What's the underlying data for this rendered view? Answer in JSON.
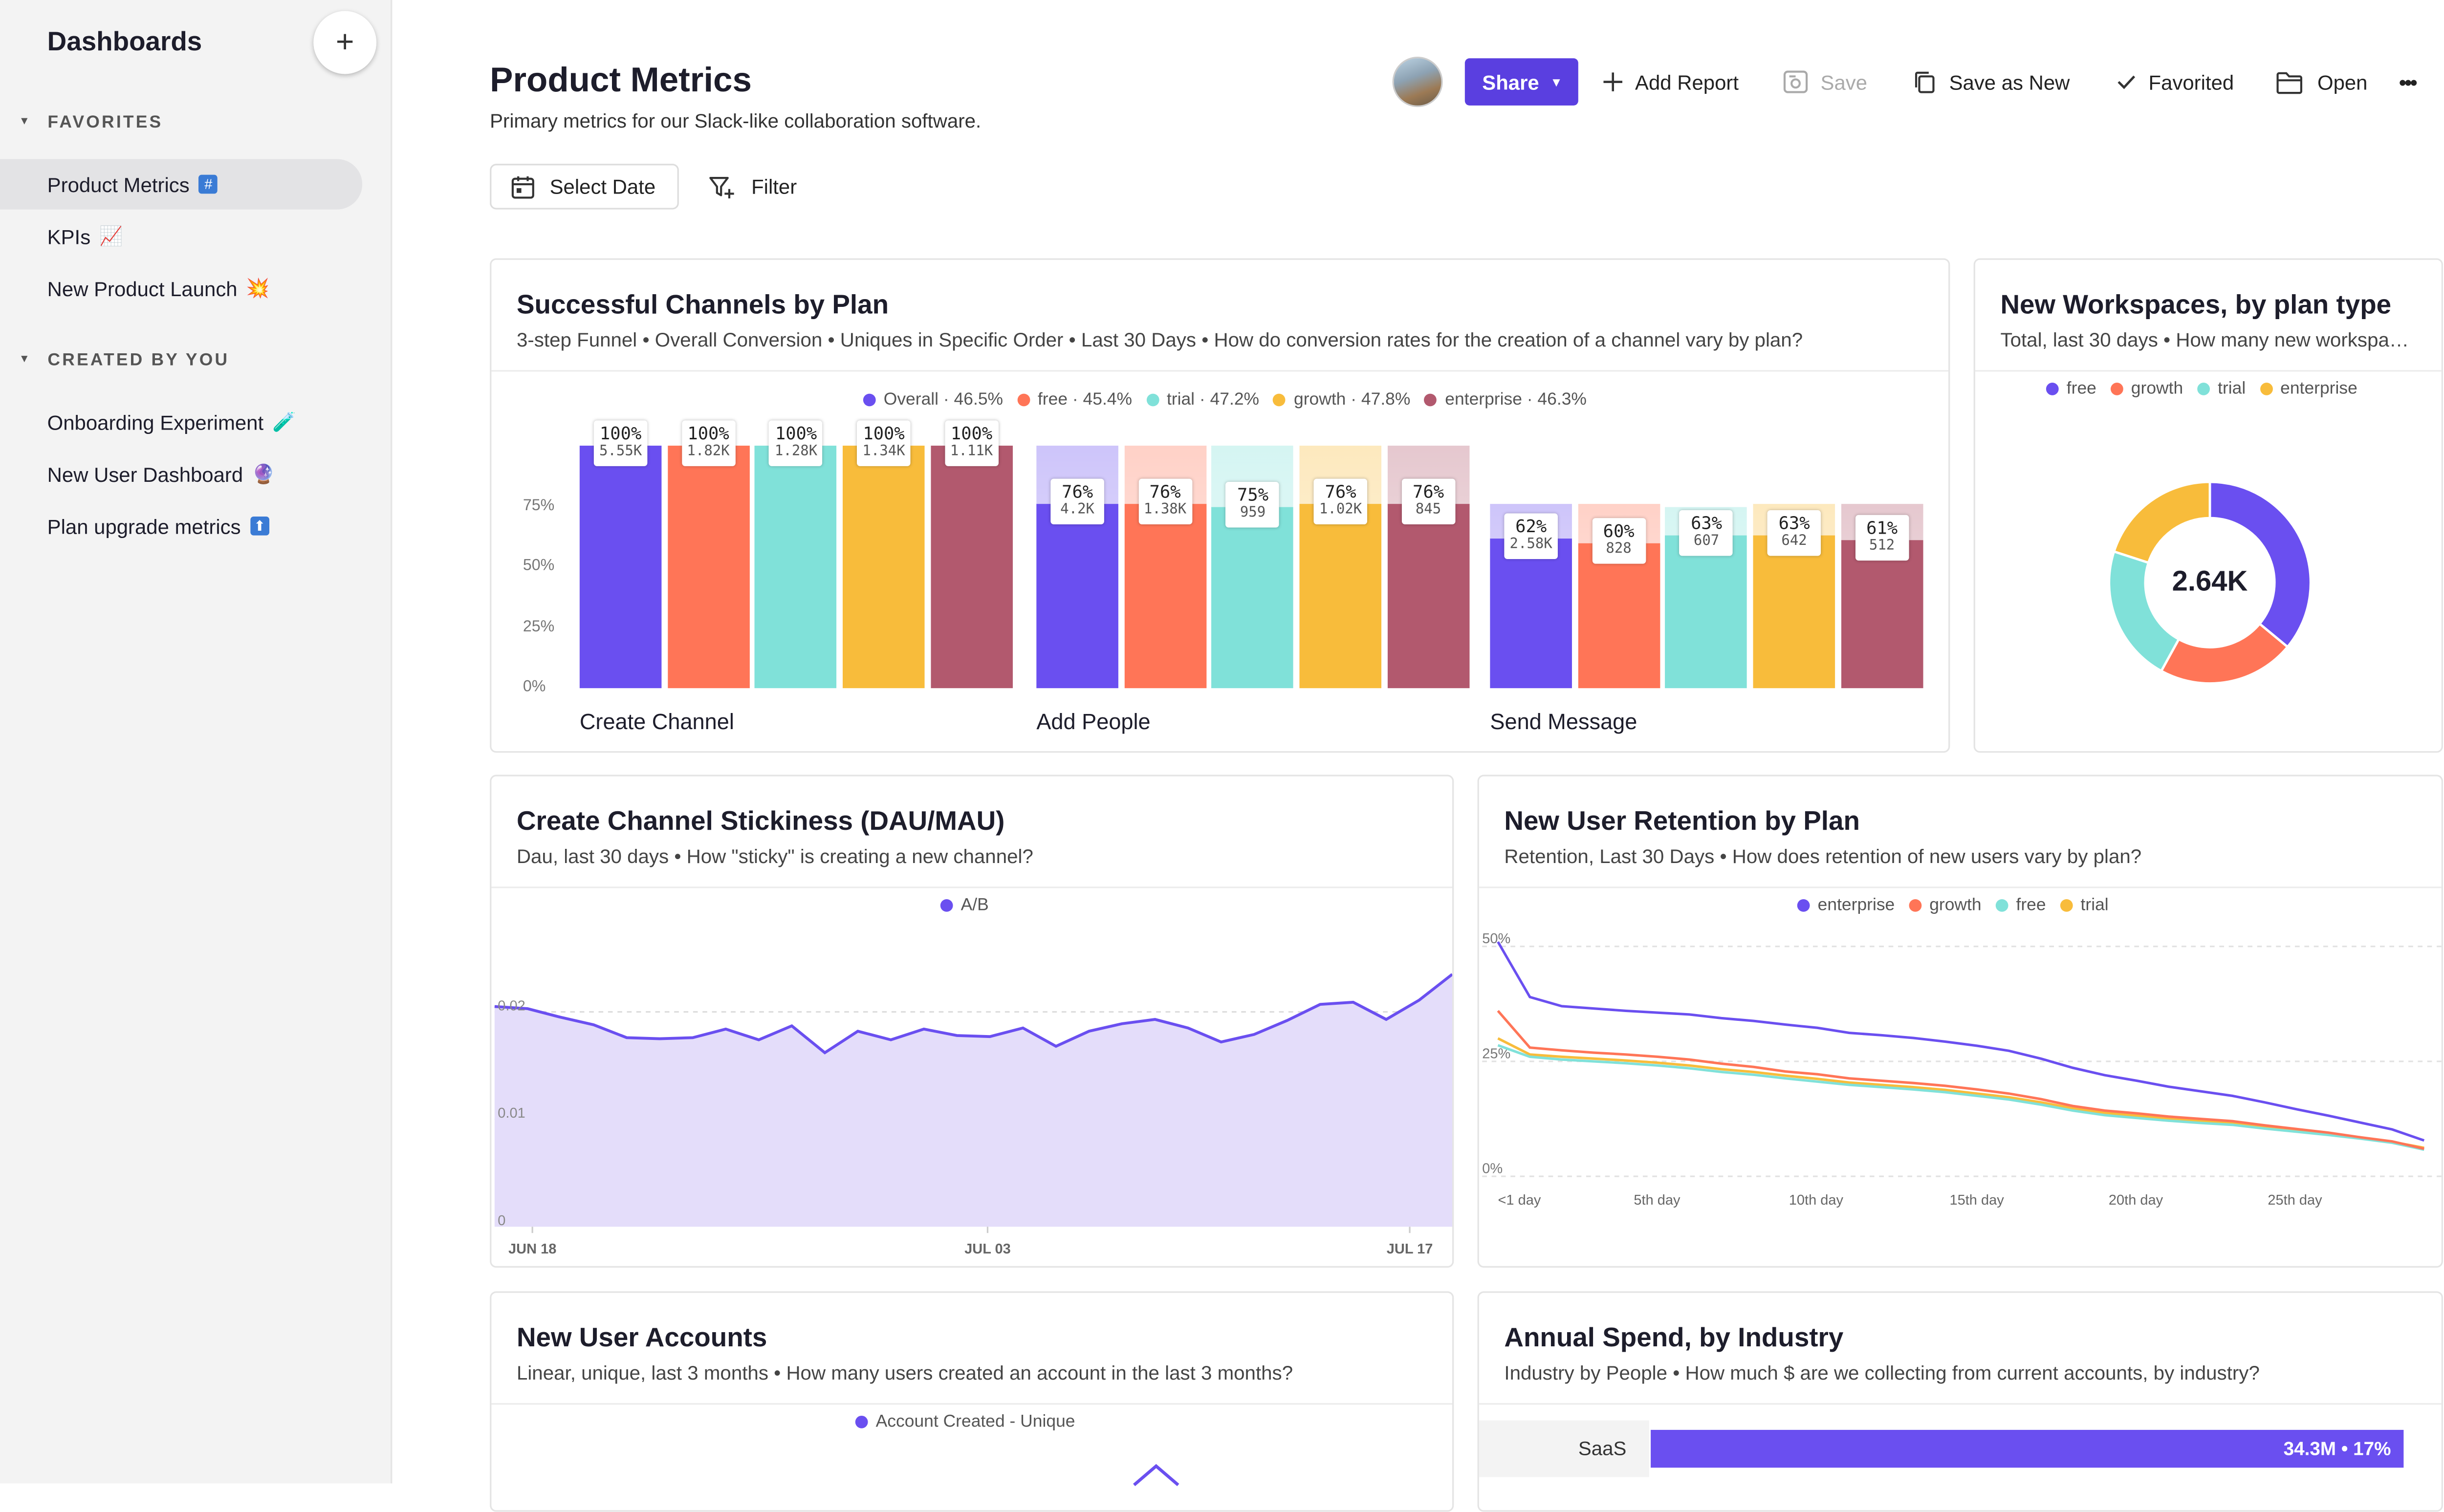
{
  "sidebar": {
    "title": "Dashboards",
    "add_label": "+",
    "favorites_label": "FAVORITES",
    "created_label": "CREATED BY YOU",
    "favorites": [
      {
        "label": "Product Metrics",
        "icon": "hash-emoji-icon",
        "emoji": "#",
        "active": true
      },
      {
        "label": "KPIs",
        "icon": "chart-increasing-emoji-icon",
        "emoji": "📈"
      },
      {
        "label": "New Product Launch",
        "icon": "collision-emoji-icon",
        "emoji": "💥"
      }
    ],
    "created": [
      {
        "label": "Onboarding Experiment",
        "icon": "test-tube-emoji-icon",
        "emoji": "🧪"
      },
      {
        "label": "New User Dashboard",
        "icon": "crystal-ball-emoji-icon",
        "emoji": "🔮"
      },
      {
        "label": "Plan upgrade metrics",
        "icon": "up-arrow-emoji-icon",
        "emoji": "⬆"
      }
    ]
  },
  "header": {
    "title": "Product Metrics",
    "description": "Primary metrics for our Slack-like collaboration software.",
    "select_date": "Select Date",
    "filter": "Filter"
  },
  "toolbar": {
    "share": "Share",
    "add_report": "Add Report",
    "save": "Save",
    "save_as_new": "Save as New",
    "favorited": "Favorited",
    "open": "Open",
    "more": "•••"
  },
  "colors": {
    "purple": "#6a4ff0",
    "orange": "#ff7557",
    "teal": "#80e1d9",
    "yellow": "#f8bc3b",
    "maroon": "#b2596e",
    "brand": "#5a3fe0"
  },
  "funnel": {
    "title": "Successful Channels by Plan",
    "subtitle": "3-step Funnel • Overall Conversion • Uniques in Specific Order • Last 30 Days • How do conversion rates for the creation of a channel vary by plan?",
    "legend": [
      {
        "label": "Overall · 46.5%",
        "color": "#6a4ff0"
      },
      {
        "label": "free · 45.4%",
        "color": "#ff7557"
      },
      {
        "label": "trial · 47.2%",
        "color": "#80e1d9"
      },
      {
        "label": "growth · 47.8%",
        "color": "#f8bc3b"
      },
      {
        "label": "enterprise · 46.3%",
        "color": "#b2596e"
      }
    ],
    "y_ticks": [
      "75%",
      "50%",
      "25%",
      "0%"
    ]
  },
  "workspaces": {
    "title": "New Workspaces, by plan type",
    "subtitle": "Total, last 30 days • How many new workspac...",
    "legend": [
      {
        "label": "free",
        "color": "#6a4ff0"
      },
      {
        "label": "growth",
        "color": "#ff7557"
      },
      {
        "label": "trial",
        "color": "#80e1d9"
      },
      {
        "label": "enterprise",
        "color": "#f8bc3b"
      }
    ],
    "total": "2.64K"
  },
  "stickiness": {
    "title": "Create Channel Stickiness (DAU/MAU)",
    "subtitle": "Dau, last 30 days • How \"sticky\" is creating a new channel?",
    "legend": [
      {
        "label": "A/B",
        "color": "#6a4ff0"
      }
    ],
    "y_ticks": [
      "0.02",
      "0.01",
      "0"
    ],
    "x_ticks": [
      "JUN 18",
      "JUL 03",
      "JUL 17"
    ]
  },
  "retention": {
    "title": "New User Retention by Plan",
    "subtitle": "Retention, Last 30 Days • How does retention of new users vary by plan?",
    "legend": [
      {
        "label": "enterprise",
        "color": "#6a4ff0"
      },
      {
        "label": "growth",
        "color": "#ff7557"
      },
      {
        "label": "free",
        "color": "#80e1d9"
      },
      {
        "label": "trial",
        "color": "#f8bc3b"
      }
    ],
    "y_ticks": [
      "50%",
      "25%",
      "0%"
    ],
    "x_ticks": [
      "<1 day",
      "5th day",
      "10th day",
      "15th day",
      "20th day",
      "25th day"
    ]
  },
  "accounts": {
    "title": "New User Accounts",
    "subtitle": "Linear, unique, last 3 months • How many users created an account in the last 3 months?",
    "legend": [
      {
        "label": "Account Created - Unique",
        "color": "#6a4ff0"
      }
    ]
  },
  "spend": {
    "title": "Annual Spend, by Industry",
    "subtitle": "Industry by People • How much $ are we collecting from current accounts, by industry?",
    "row_label": "SaaS",
    "row_value": "34.3M • 17%"
  },
  "chart_data": [
    {
      "type": "bar",
      "title": "Successful Channels by Plan",
      "categories": [
        "Create Channel",
        "Add People",
        "Send Message"
      ],
      "series": [
        {
          "name": "Overall",
          "values": [
            100,
            76,
            62
          ],
          "counts": [
            "5.55K",
            "4.2K",
            "2.58K"
          ]
        },
        {
          "name": "free",
          "values": [
            100,
            76,
            60
          ],
          "counts": [
            "1.82K",
            "1.38K",
            "828"
          ]
        },
        {
          "name": "trial",
          "values": [
            100,
            75,
            63
          ],
          "counts": [
            "1.28K",
            "959",
            "607"
          ]
        },
        {
          "name": "growth",
          "values": [
            100,
            76,
            63
          ],
          "counts": [
            "1.34K",
            "1.02K",
            "642"
          ]
        },
        {
          "name": "enterprise",
          "values": [
            100,
            76,
            61
          ],
          "counts": [
            "1.11K",
            "845",
            "512"
          ]
        }
      ],
      "ylabel": "",
      "xlabel": "",
      "ylim": [
        0,
        100
      ]
    },
    {
      "type": "pie",
      "title": "New Workspaces, by plan type",
      "categories": [
        "free",
        "growth",
        "trial",
        "enterprise"
      ],
      "values": [
        36,
        22,
        22,
        20
      ],
      "total": "2.64K"
    },
    {
      "type": "area",
      "title": "Create Channel Stickiness (DAU/MAU)",
      "series": [
        {
          "name": "A/B",
          "values": [
            0.0205,
            0.0203,
            0.0195,
            0.0188,
            0.0176,
            0.0175,
            0.0176,
            0.0184,
            0.0174,
            0.0187,
            0.0162,
            0.0182,
            0.0174,
            0.0184,
            0.0178,
            0.0177,
            0.0185,
            0.0168,
            0.0182,
            0.0189,
            0.0193,
            0.0185,
            0.0172,
            0.0179,
            0.0192,
            0.0207,
            0.0209,
            0.0193,
            0.0211,
            0.0235
          ]
        }
      ],
      "x_ticks": [
        "JUN 18",
        "JUL 03",
        "JUL 17"
      ],
      "ylim": [
        0,
        0.03
      ]
    },
    {
      "type": "line",
      "title": "New User Retention by Plan",
      "x": [
        "<1 day",
        "",
        "",
        "",
        "",
        "5th day",
        "",
        "",
        "",
        "",
        "10th day",
        "",
        "",
        "",
        "",
        "15th day",
        "",
        "",
        "",
        "",
        "20th day",
        "",
        "",
        "",
        "",
        "25th day",
        "",
        "",
        "",
        ""
      ],
      "series": [
        {
          "name": "enterprise",
          "values": [
            51,
            39,
            37,
            36.5,
            36,
            35.6,
            35.2,
            34.4,
            33.8,
            33,
            32.3,
            31.2,
            30.7,
            30.1,
            29.3,
            28.4,
            27.3,
            25.6,
            23.6,
            22,
            20.8,
            19.5,
            18.5,
            17.5,
            16.1,
            14.6,
            13.2,
            11.7,
            10.2,
            7.8
          ]
        },
        {
          "name": "growth",
          "values": [
            36,
            28,
            27.4,
            26.9,
            26.5,
            26,
            25.4,
            24.5,
            23.8,
            22.8,
            22.2,
            21.3,
            20.8,
            20.3,
            19.7,
            18.9,
            18,
            16.8,
            15.3,
            14.3,
            13.7,
            13,
            12.5,
            12,
            11.1,
            10.3,
            9.5,
            8.5,
            7.6,
            6
          ]
        },
        {
          "name": "free",
          "values": [
            28.5,
            26,
            25.4,
            25,
            24.6,
            24.1,
            23.5,
            22.7,
            22.1,
            21.3,
            20.6,
            19.9,
            19.4,
            18.9,
            18.3,
            17.5,
            16.7,
            15.6,
            14.3,
            13.3,
            12.7,
            12.1,
            11.6,
            11.2,
            10.4,
            9.7,
            9,
            8.2,
            7.3,
            5.8
          ]
        },
        {
          "name": "trial",
          "values": [
            30,
            26.5,
            26,
            25.6,
            25.2,
            24.7,
            24.1,
            23.3,
            22.7,
            21.9,
            21.2,
            20.4,
            19.9,
            19.4,
            18.8,
            18,
            17.2,
            16.1,
            14.8,
            13.8,
            13.2,
            12.5,
            12,
            11.6,
            10.8,
            10,
            9.3,
            8.4,
            7.5,
            6.2
          ]
        }
      ],
      "ylim": [
        0,
        50
      ]
    },
    {
      "type": "bar",
      "title": "Annual Spend, by Industry",
      "categories": [
        "SaaS"
      ],
      "values": [
        34.3
      ],
      "labels": [
        "34.3M • 17%"
      ]
    }
  ]
}
